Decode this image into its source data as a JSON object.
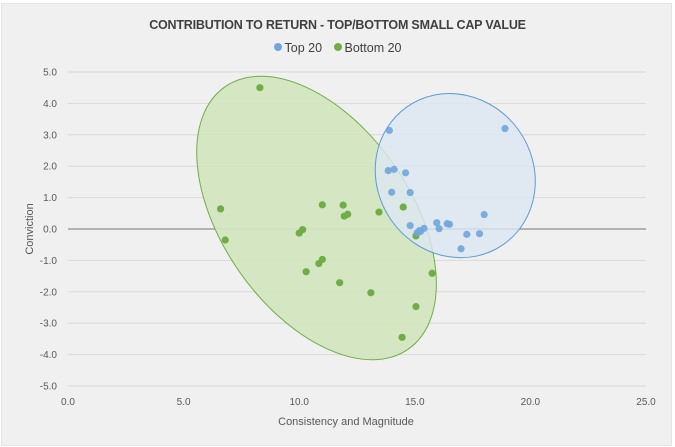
{
  "chart_data": {
    "type": "scatter",
    "title": "CONTRIBUTION TO RETURN - TOP/BOTTOM SMALL CAP VALUE",
    "xlabel": "Consistency and Magnitude",
    "ylabel": "Conviction",
    "xlim": [
      0,
      25
    ],
    "ylim": [
      -5,
      5
    ],
    "x_ticks": [
      "0.0",
      "5.0",
      "10.0",
      "15.0",
      "20.0",
      "25.0"
    ],
    "x_tick_values": [
      0,
      5,
      10,
      15,
      20,
      25
    ],
    "y_ticks": [
      "5.0",
      "4.0",
      "3.0",
      "2.0",
      "1.0",
      "0.0",
      "-1.0",
      "-2.0",
      "-3.0",
      "-4.0",
      "-5.0"
    ],
    "y_tick_values": [
      5,
      4,
      3,
      2,
      1,
      0,
      -1,
      -2,
      -3,
      -4,
      -5
    ],
    "grid": true,
    "legend_position": "top",
    "series": [
      {
        "name": "Top 20",
        "color": "#6fa6dc",
        "points": [
          [
            18.9,
            3.2
          ],
          [
            13.9,
            3.14
          ],
          [
            14.1,
            1.9
          ],
          [
            13.85,
            1.86
          ],
          [
            14.6,
            1.79
          ],
          [
            14.0,
            1.17
          ],
          [
            14.8,
            1.16
          ],
          [
            14.8,
            0.11
          ],
          [
            15.2,
            -0.05
          ],
          [
            15.1,
            -0.12
          ],
          [
            15.25,
            -0.08
          ],
          [
            15.4,
            0.02
          ],
          [
            15.95,
            0.2
          ],
          [
            16.05,
            0.01
          ],
          [
            16.4,
            0.17
          ],
          [
            16.5,
            0.15
          ],
          [
            18.0,
            0.46
          ],
          [
            17.25,
            -0.17
          ],
          [
            17.8,
            -0.15
          ],
          [
            17.0,
            -0.63
          ]
        ]
      },
      {
        "name": "Bottom 20",
        "color": "#70ad47",
        "points": [
          [
            8.3,
            4.5
          ],
          [
            6.6,
            0.64
          ],
          [
            6.8,
            -0.35
          ],
          [
            11.0,
            0.77
          ],
          [
            11.9,
            0.76
          ],
          [
            11.95,
            0.41
          ],
          [
            12.1,
            0.47
          ],
          [
            13.45,
            0.54
          ],
          [
            14.5,
            0.7
          ],
          [
            10.15,
            -0.02
          ],
          [
            10.0,
            -0.13
          ],
          [
            15.05,
            -0.22
          ],
          [
            11.0,
            -0.97
          ],
          [
            10.85,
            -1.1
          ],
          [
            10.3,
            -1.36
          ],
          [
            11.75,
            -1.71
          ],
          [
            13.1,
            -2.03
          ],
          [
            15.75,
            -1.41
          ],
          [
            15.05,
            -2.47
          ],
          [
            14.45,
            -3.45
          ]
        ]
      }
    ],
    "annotations": [
      {
        "type": "ellipse",
        "series": "Bottom 20",
        "fill": "#d3e5c0",
        "stroke": "#70ad47"
      },
      {
        "type": "ellipse",
        "series": "Top 20",
        "fill": "#dce6f0",
        "stroke": "#5b9bd5"
      }
    ]
  }
}
